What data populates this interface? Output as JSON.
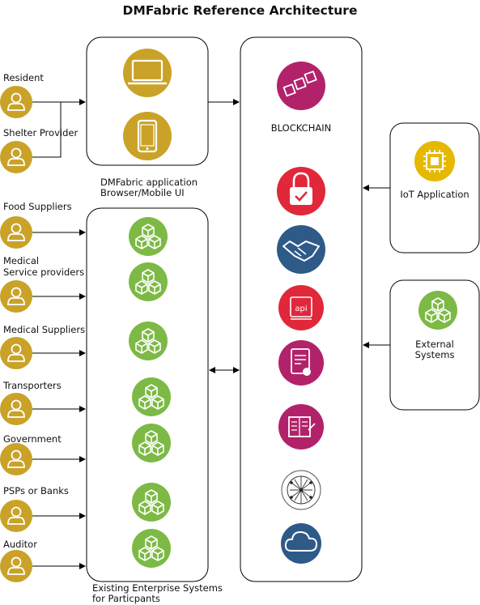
{
  "title": "DMFabric Reference Architecture",
  "colors": {
    "person": "#C9A227",
    "enterprise": "#7DB945",
    "blockchain": "#B2226A",
    "security": "#E0283A",
    "handshake": "#2E5A88",
    "iot": "#E6B800",
    "device": "#C9A227"
  },
  "participants": {
    "resident": "Resident",
    "shelter_provider": "Shelter Provider",
    "food_suppliers": "Food Suppliers",
    "medical_service_line1": "Medical",
    "medical_service_line2": "Service providers",
    "medical_suppliers": "Medical Suppliers",
    "transporters": "Transporters",
    "government": "Government",
    "psps_banks": "PSPs or Banks",
    "auditor": "Auditor"
  },
  "app_box": {
    "label_line1": "DMFabric application",
    "label_line2": "Browser/Mobile UI",
    "icons": [
      "laptop-icon",
      "mobile-phone-icon"
    ]
  },
  "enterprise_box": {
    "label_line1": "Existing Enterprise Systems",
    "label_line2": "for Particpants",
    "icon": "cubes-icon"
  },
  "blockchain_box": {
    "label": "BLOCKCHAIN",
    "icons": [
      "blockchain-cubes-icon",
      "lock-check-icon",
      "handshake-icon",
      "api-icon",
      "certificate-icon",
      "ledger-icon",
      "network-globe-icon",
      "cloud-icon"
    ]
  },
  "iot_box": {
    "label": "IoT Application",
    "icon": "chip-icon"
  },
  "external_box": {
    "label_line1": "External",
    "label_line2": "Systems",
    "icon": "cubes-icon"
  }
}
